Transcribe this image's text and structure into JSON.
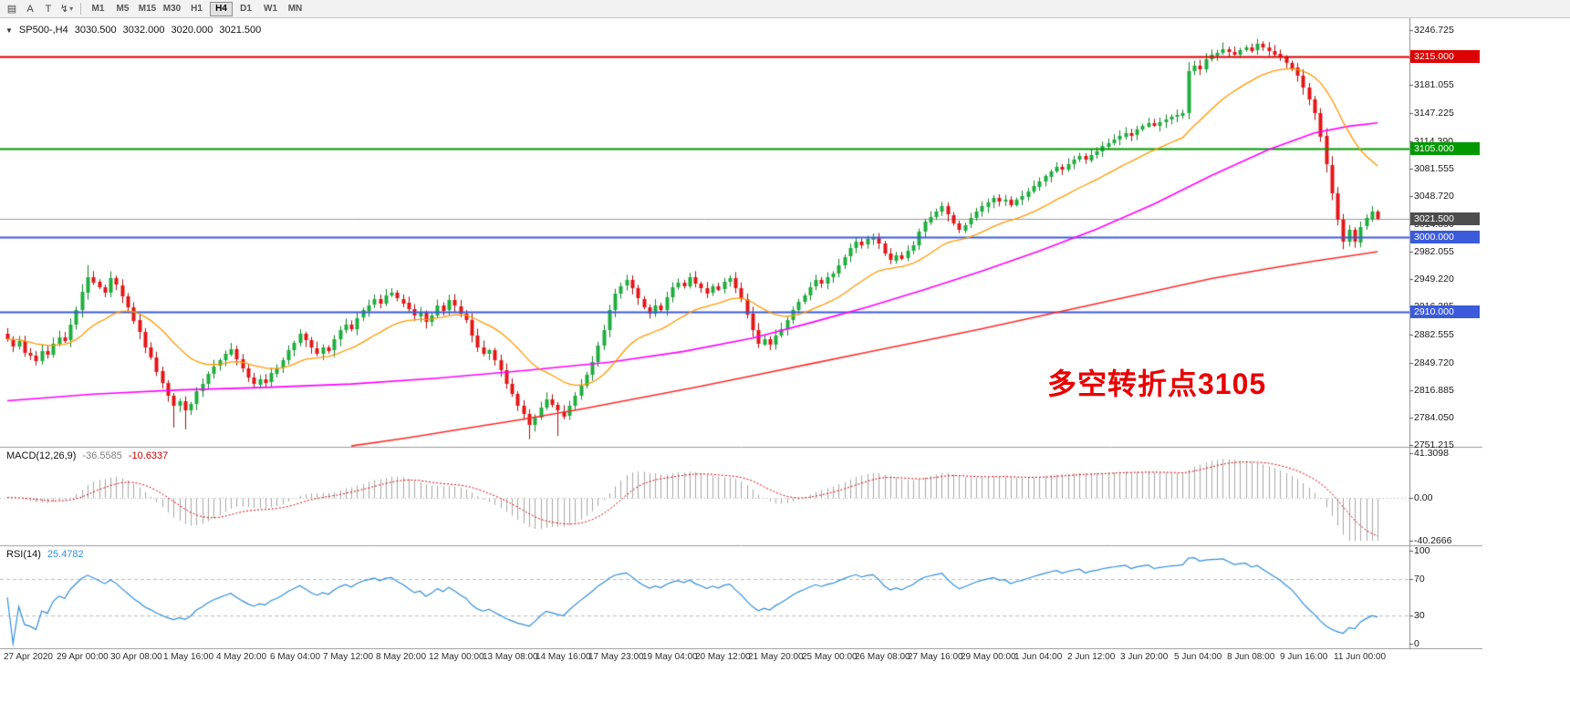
{
  "toolbar": {
    "icons": [
      {
        "name": "chart-bars-icon",
        "glyph": "▤"
      },
      {
        "name": "cursor-tool-icon",
        "glyph": "A"
      },
      {
        "name": "text-tool-icon",
        "glyph": "T"
      },
      {
        "name": "indicator-tool-icon",
        "glyph": "↯"
      }
    ],
    "caret_glyph": "▾",
    "timeframes": [
      "M1",
      "M5",
      "M15",
      "M30",
      "H1",
      "H4",
      "D1",
      "W1",
      "MN"
    ],
    "active_timeframe": "H4"
  },
  "main_chart": {
    "title": {
      "collapse_glyph": "▼",
      "symbol": "SP500-,H4",
      "open": "3030.500",
      "high": "3032.000",
      "low": "3020.000",
      "close": "3021.500"
    },
    "annotation": {
      "text": "多空转折点3105",
      "color": "#e80000"
    },
    "price_axis": {
      "max": 3246.725,
      "min": 2751.215,
      "ticks": [
        "3246.725",
        "3213.890",
        "3181.055",
        "3147.225",
        "3114.390",
        "3081.555",
        "3048.720",
        "3014.890",
        "2982.055",
        "2949.220",
        "2916.385",
        "2882.555",
        "2849.720",
        "2816.885",
        "2784.050",
        "2751.215"
      ]
    },
    "levels": [
      {
        "label": "3215.000",
        "value": 3215.0,
        "color": "#dd0000"
      },
      {
        "label": "3105.000",
        "value": 3105.0,
        "color": "#009900"
      },
      {
        "label": "3000.000",
        "value": 3000.0,
        "color": "#3b5bdb"
      },
      {
        "label": "2910.000",
        "value": 2910.0,
        "color": "#3b5bdb"
      }
    ],
    "current_price": {
      "label": "3021.500",
      "value": 3021.5,
      "line_color": "#9a9a9a",
      "badge_color": "#4d4d4d"
    },
    "time_axis": [
      "27 Apr 2020",
      "29 Apr 00:00",
      "30 Apr 08:00",
      "1 May 16:00",
      "4 May 20:00",
      "6 May 04:00",
      "7 May 12:00",
      "8 May 20:00",
      "12 May 00:00",
      "13 May 08:00",
      "14 May 16:00",
      "17 May 23:00",
      "19 May 04:00",
      "20 May 12:00",
      "21 May 20:00",
      "25 May 00:00",
      "26 May 08:00",
      "27 May 16:00",
      "29 May 00:00",
      "1 Jun 04:00",
      "2 Jun 12:00",
      "3 Jun 20:00",
      "5 Jun 04:00",
      "8 Jun 08:00",
      "9 Jun 16:00",
      "11 Jun 00:00"
    ],
    "colors": {
      "up": "#1fae3d",
      "up_border": "#12822a",
      "down": "#e51616",
      "down_border": "#a50d0d",
      "ma_fast": "#ff9900",
      "ma_mid": "#ff00ff",
      "ma_slow": "#ff2a2a"
    }
  },
  "chart_data": {
    "type": "candlestick+indicators",
    "symbol": "SP500-",
    "timeframe": "H4",
    "candles": {
      "open_first": 2884,
      "closes": [
        2878,
        2869,
        2875,
        2861,
        2858,
        2851,
        2863,
        2859,
        2872,
        2880,
        2876,
        2895,
        2912,
        2934,
        2952,
        2946,
        2940,
        2933,
        2950,
        2942,
        2929,
        2916,
        2900,
        2886,
        2868,
        2856,
        2839,
        2825,
        2810,
        2798,
        2803,
        2792,
        2800,
        2815,
        2824,
        2836,
        2845,
        2852,
        2860,
        2866,
        2854,
        2843,
        2832,
        2824,
        2830,
        2826,
        2837,
        2843,
        2852,
        2864,
        2873,
        2884,
        2876,
        2867,
        2860,
        2868,
        2864,
        2877,
        2888,
        2895,
        2890,
        2903,
        2912,
        2918,
        2925,
        2920,
        2930,
        2933,
        2926,
        2921,
        2913,
        2905,
        2909,
        2898,
        2906,
        2918,
        2912,
        2924,
        2917,
        2908,
        2900,
        2882,
        2868,
        2860,
        2864,
        2852,
        2840,
        2824,
        2812,
        2798,
        2788,
        2775,
        2784,
        2796,
        2806,
        2799,
        2792,
        2786,
        2798,
        2810,
        2822,
        2835,
        2850,
        2870,
        2888,
        2912,
        2932,
        2941,
        2948,
        2938,
        2926,
        2916,
        2908,
        2918,
        2913,
        2928,
        2940,
        2945,
        2941,
        2952,
        2944,
        2939,
        2933,
        2941,
        2937,
        2946,
        2950,
        2938,
        2926,
        2908,
        2888,
        2872,
        2878,
        2871,
        2882,
        2890,
        2900,
        2912,
        2922,
        2930,
        2940,
        2948,
        2944,
        2952,
        2956,
        2966,
        2976,
        2986,
        2994,
        2990,
        2997,
        3000,
        2992,
        2980,
        2972,
        2978,
        2974,
        2983,
        2990,
        3006,
        3018,
        3024,
        3030,
        3036,
        3026,
        3016,
        3008,
        3014,
        3022,
        3030,
        3036,
        3041,
        3046,
        3042,
        3044,
        3038,
        3044,
        3048,
        3054,
        3060,
        3066,
        3072,
        3078,
        3083,
        3080,
        3087,
        3092,
        3096,
        3092,
        3098,
        3102,
        3108,
        3112,
        3116,
        3120,
        3124,
        3121,
        3128,
        3132,
        3136,
        3133,
        3137,
        3140,
        3143,
        3145,
        3148,
        3198,
        3204,
        3200,
        3212,
        3217,
        3220,
        3224,
        3221,
        3218,
        3223,
        3226,
        3222,
        3230,
        3226,
        3222,
        3218,
        3214,
        3208,
        3202,
        3192,
        3178,
        3164,
        3148,
        3120,
        3086,
        3052,
        3020,
        2994,
        3008,
        2994,
        3012,
        3022,
        3030.5,
        3021.5
      ],
      "high_overrides": {
        "14": 2966,
        "212": 3232,
        "218": 3236,
        "239": 3032
      },
      "low_overrides": {
        "29": 2772,
        "31": 2770,
        "91": 2758,
        "96": 2762,
        "233": 2985,
        "239": 3020
      }
    },
    "ma_fast_period": 21,
    "ma_mid_points": [
      [
        0,
        2804
      ],
      [
        15,
        2812
      ],
      [
        30,
        2817
      ],
      [
        45,
        2820
      ],
      [
        60,
        2824
      ],
      [
        75,
        2831
      ],
      [
        90,
        2840
      ],
      [
        105,
        2850
      ],
      [
        118,
        2863
      ],
      [
        130,
        2879
      ],
      [
        140,
        2897
      ],
      [
        150,
        2916
      ],
      [
        160,
        2937
      ],
      [
        170,
        2959
      ],
      [
        180,
        2983
      ],
      [
        190,
        3009
      ],
      [
        200,
        3039
      ],
      [
        210,
        3073
      ],
      [
        220,
        3104
      ],
      [
        228,
        3124
      ],
      [
        234,
        3132
      ],
      [
        239,
        3136
      ]
    ],
    "ma_slow_points": [
      [
        60,
        2750
      ],
      [
        70,
        2760
      ],
      [
        80,
        2771
      ],
      [
        90,
        2782
      ],
      [
        100,
        2794
      ],
      [
        110,
        2807
      ],
      [
        120,
        2820
      ],
      [
        130,
        2834
      ],
      [
        140,
        2848
      ],
      [
        150,
        2862
      ],
      [
        160,
        2876
      ],
      [
        170,
        2890
      ],
      [
        180,
        2905
      ],
      [
        190,
        2920
      ],
      [
        200,
        2935
      ],
      [
        210,
        2950
      ],
      [
        220,
        2962
      ],
      [
        228,
        2971
      ],
      [
        234,
        2977
      ],
      [
        239,
        2982
      ]
    ]
  },
  "macd_panel": {
    "title": "MACD(12,26,9)",
    "value_main": "-36.5585",
    "value_signal": "-10.6337",
    "params": {
      "fast": 12,
      "slow": 26,
      "signal": 9
    },
    "axis": [
      {
        "label": "41.3098",
        "value": 41.3098
      },
      {
        "label": "0.00",
        "value": 0
      },
      {
        "label": "-40.2666",
        "value": -40.2666
      }
    ],
    "range": {
      "max": 41.3098,
      "min": -40.2666
    },
    "colors": {
      "histogram": "#a6a6a6",
      "signal": "#dd0000"
    }
  },
  "rsi_panel": {
    "title": "RSI(14)",
    "value": "25.4782",
    "period": 14,
    "axis": [
      {
        "label": "100",
        "value": 100
      },
      {
        "label": "70",
        "value": 70
      },
      {
        "label": "30",
        "value": 30
      },
      {
        "label": "0",
        "value": 0
      }
    ],
    "levels": [
      70,
      30
    ],
    "color": "#2f8fdd"
  }
}
